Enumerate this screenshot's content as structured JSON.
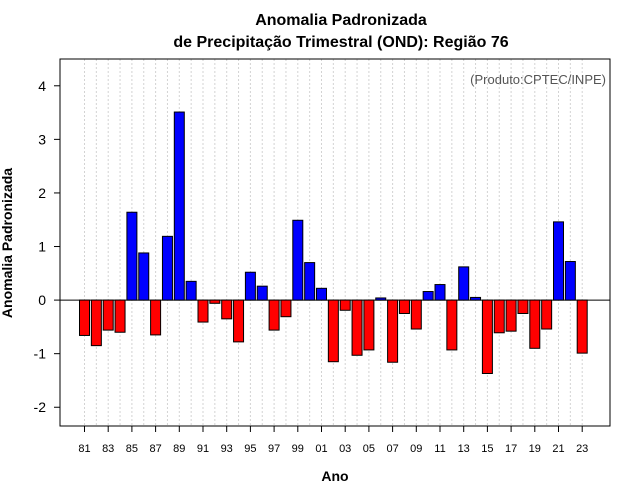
{
  "chart_data": {
    "type": "bar",
    "title": "Anomalia Padronizada",
    "subtitle": "de Precipitação Trimestral (OND): Região 76",
    "xlabel": "Ano",
    "ylabel": "Anomalia Padronizada",
    "annotation": "(Produto:CPTEC/INPE)",
    "ylim": [
      -2.35,
      4.5
    ],
    "yticks": [
      -2,
      -1,
      0,
      1,
      2,
      3,
      4
    ],
    "categories": [
      "81",
      "82",
      "83",
      "84",
      "85",
      "86",
      "87",
      "88",
      "89",
      "90",
      "91",
      "92",
      "93",
      "94",
      "95",
      "96",
      "97",
      "98",
      "99",
      "00",
      "01",
      "02",
      "03",
      "04",
      "05",
      "06",
      "07",
      "08",
      "09",
      "10",
      "11",
      "12",
      "13",
      "14",
      "15",
      "16",
      "17",
      "18",
      "19",
      "20",
      "21",
      "22",
      "23"
    ],
    "xtick_labels": [
      "81",
      "83",
      "85",
      "87",
      "89",
      "91",
      "93",
      "95",
      "97",
      "99",
      "01",
      "03",
      "05",
      "07",
      "09",
      "11",
      "13",
      "15",
      "17",
      "19",
      "21",
      "23"
    ],
    "values": [
      -0.66,
      -0.85,
      -0.56,
      -0.6,
      1.64,
      0.88,
      -0.65,
      1.19,
      3.51,
      0.35,
      -0.41,
      -0.06,
      -0.35,
      -0.78,
      0.52,
      0.26,
      -0.56,
      -0.31,
      1.49,
      0.7,
      0.22,
      -1.15,
      -0.19,
      -1.03,
      -0.93,
      0.04,
      -1.16,
      -0.25,
      -0.54,
      0.16,
      0.29,
      -0.93,
      0.62,
      0.05,
      -1.37,
      -0.61,
      -0.58,
      -0.25,
      -0.9,
      -0.54,
      1.46,
      0.72,
      -0.99
    ],
    "colors": {
      "positive": "#0000ff",
      "negative": "#ff0000",
      "zero_line": "#000000",
      "grid": "#d3d3d3"
    },
    "grid": true
  }
}
